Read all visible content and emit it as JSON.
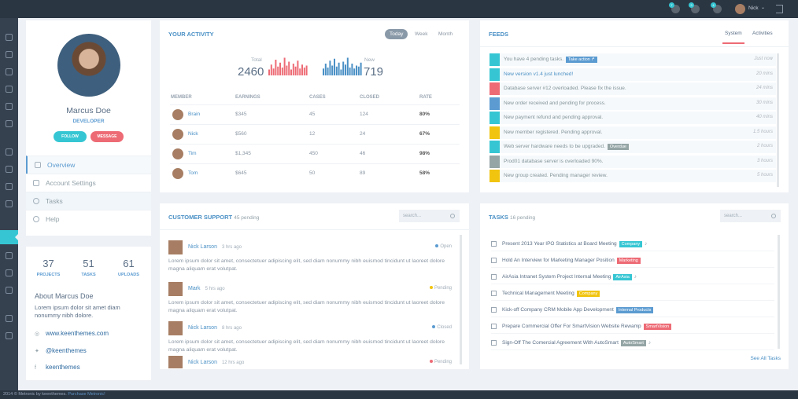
{
  "topbar": {
    "user_name": "Nick",
    "badges": [
      "7",
      "3",
      "4"
    ],
    "caret": "⌄"
  },
  "profile": {
    "name": "Marcus Doe",
    "title": "DEVELOPER",
    "follow_label": "FOLLOW",
    "message_label": "MESSAGE",
    "menu": [
      {
        "label": "Overview"
      },
      {
        "label": "Account Settings"
      },
      {
        "label": "Tasks"
      },
      {
        "label": "Help"
      }
    ]
  },
  "stats": [
    {
      "value": "37",
      "label": "PROJECTS"
    },
    {
      "value": "51",
      "label": "TASKS"
    },
    {
      "value": "61",
      "label": "UPLOADS"
    }
  ],
  "about": {
    "title": "About Marcus Doe",
    "text": "Lorem ipsum dolor sit amet diam nonummy nibh dolore.",
    "links": [
      {
        "icon": "globe-icon",
        "glyph": "◎",
        "label": "www.keenthemes.com"
      },
      {
        "icon": "twitter-icon",
        "glyph": "✦",
        "label": "@keenthemes"
      },
      {
        "icon": "facebook-icon",
        "glyph": "f",
        "label": "keenthemes"
      }
    ]
  },
  "activity": {
    "title": "YOUR ACTIVITY",
    "tabs": [
      "Today",
      "Week",
      "Month"
    ],
    "total_label": "Total",
    "total_value": "2460",
    "new_label": "New",
    "new_value": "719",
    "total_bars": [
      0.3,
      0.55,
      0.35,
      0.8,
      0.45,
      0.65,
      0.4,
      0.9,
      0.5,
      0.7,
      0.3,
      0.6,
      0.45,
      0.75,
      0.35,
      0.55,
      0.4,
      0.5
    ],
    "new_bars": [
      0.35,
      0.6,
      0.4,
      0.75,
      0.5,
      0.85,
      0.45,
      0.65,
      0.3,
      0.7,
      0.55,
      0.9,
      0.4,
      0.6,
      0.35,
      0.5,
      0.45,
      0.65
    ],
    "colors": {
      "total": "#ed6b75",
      "new": "#4a90c5"
    },
    "columns": [
      "MEMBER",
      "EARNINGS",
      "CASES",
      "CLOSED",
      "RATE"
    ],
    "rows": [
      {
        "member": "Brain",
        "earnings": "$345",
        "cases": "45",
        "closed": "124",
        "rate": "80%"
      },
      {
        "member": "Nick",
        "earnings": "$560",
        "cases": "12",
        "closed": "24",
        "rate": "67%"
      },
      {
        "member": "Tim",
        "earnings": "$1,345",
        "cases": "450",
        "closed": "46",
        "rate": "98%"
      },
      {
        "member": "Tom",
        "earnings": "$645",
        "cases": "50",
        "closed": "89",
        "rate": "58%"
      }
    ]
  },
  "feeds": {
    "title": "FEEDS",
    "tabs": [
      "System",
      "Activities"
    ],
    "items": [
      {
        "text": "You have 4 pending tasks.",
        "tag": "Take action ↱",
        "tag_color": "#5b9bd1",
        "time": "Just now",
        "color": "#36c6d3",
        "blue": false
      },
      {
        "text": "New version v1.4 just lunched!",
        "tag": "",
        "tag_color": "",
        "time": "20 mins",
        "color": "#36c6d3",
        "blue": true
      },
      {
        "text": "Database server #12 overloaded. Please fix the issue.",
        "tag": "",
        "tag_color": "",
        "time": "24 mins",
        "color": "#ed6b75",
        "blue": false
      },
      {
        "text": "New order received and pending for process.",
        "tag": "",
        "tag_color": "",
        "time": "30 mins",
        "color": "#5b9bd1",
        "blue": false
      },
      {
        "text": "New payment refund and pending approval.",
        "tag": "",
        "tag_color": "",
        "time": "40 mins",
        "color": "#36c6d3",
        "blue": false
      },
      {
        "text": "New member registered. Pending approval.",
        "tag": "",
        "tag_color": "",
        "time": "1.5 hours",
        "color": "#f1c40f",
        "blue": false
      },
      {
        "text": "Web server hardware needs to be upgraded.",
        "tag": "Overdue",
        "tag_color": "#95a5a6",
        "time": "2 hours",
        "color": "#36c6d3",
        "blue": false
      },
      {
        "text": "Prod01 database server is overloaded 90%.",
        "tag": "",
        "tag_color": "",
        "time": "3 hours",
        "color": "#95a5a6",
        "blue": false
      },
      {
        "text": "New group created. Pending manager review.",
        "tag": "",
        "tag_color": "",
        "time": "5 hours",
        "color": "#f1c40f",
        "blue": false
      }
    ]
  },
  "support": {
    "title": "CUSTOMER SUPPORT",
    "pending": "45 pending",
    "search_placeholder": "search...",
    "items": [
      {
        "name": "Nick Larson",
        "ago": "3 hrs ago",
        "status": "Open",
        "dot": "#5b9bd1",
        "text": "Lorem ipsum dolor sit amet, consectetuer adipiscing elit, sed diam nonummy nibh euismod tincidunt ut laoreet dolore magna aliquam erat volutpat."
      },
      {
        "name": "Mark",
        "ago": "5 hrs ago",
        "status": "Pending",
        "dot": "#f1c40f",
        "text": "Lorem ipsum dolor sit amet, consectetuer adipiscing elit, sed diam nonummy nibh euismod tincidunt ut laoreet dolore magna aliquam erat volutpat."
      },
      {
        "name": "Nick Larson",
        "ago": "8 hrs ago",
        "status": "Closed",
        "dot": "#5b9bd1",
        "text": "Lorem ipsum dolor sit amet, consectetuer adipiscing elit, sed diam nonummy nibh euismod tincidunt ut laoreet dolore magna aliquam erat volutpat."
      },
      {
        "name": "Nick Larson",
        "ago": "12 hrs ago",
        "status": "Pending",
        "dot": "#ed6b75",
        "text": ""
      }
    ]
  },
  "tasks": {
    "title": "TASKS",
    "pending": "16 pending",
    "search_placeholder": "search...",
    "see_all": "See All Tasks",
    "items": [
      {
        "text": "Present 2013 Year IPO Statistics at Board Meeting",
        "tag": "Company",
        "tag_color": "#36c6d3",
        "bell": true
      },
      {
        "text": "Hold An Interview for Marketing Manager Position",
        "tag": "Marketing",
        "tag_color": "#ed6b75",
        "bell": false
      },
      {
        "text": "AirAsia Intranet System Project Internal Meeting",
        "tag": "AirAsia",
        "tag_color": "#36c6d3",
        "bell": true
      },
      {
        "text": "Technical Management Meeting",
        "tag": "Company",
        "tag_color": "#f1c40f",
        "bell": false
      },
      {
        "text": "Kick-off Company CRM Mobile App Development",
        "tag": "Internal Products",
        "tag_color": "#5b9bd1",
        "bell": false
      },
      {
        "text": "Prepare Commercial Offer For SmartVision Website Rewamp",
        "tag": "SmartVision",
        "tag_color": "#ed6b75",
        "bell": false
      },
      {
        "text": "Sign-Off The Comercial Agreement With AutoSmart",
        "tag": "AutoSmart",
        "tag_color": "#95a5a6",
        "bell": true
      }
    ]
  },
  "footer": {
    "text": "2014 © Metronic by keenthemes.",
    "link": "Purchase Metronic!"
  }
}
